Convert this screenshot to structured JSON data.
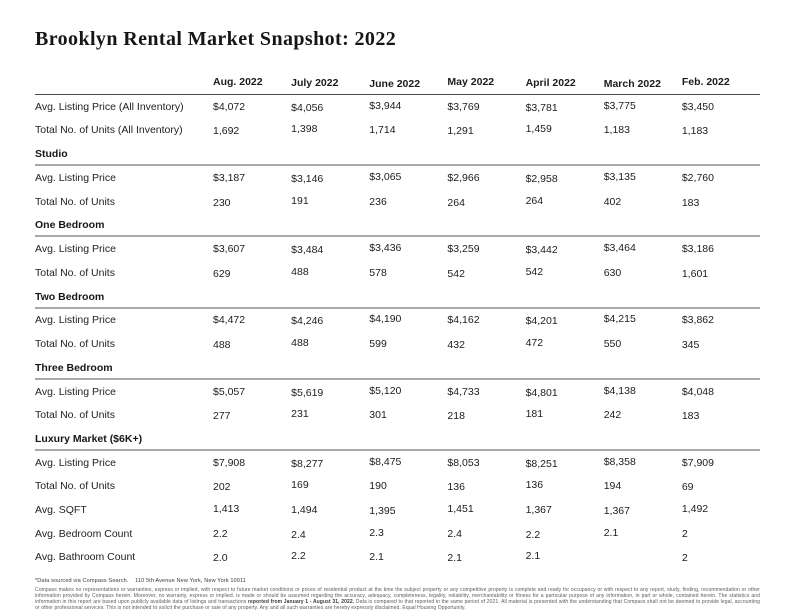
{
  "page": {
    "title": "Brooklyn Rental Market Snapshot: 2022"
  },
  "table": {
    "columns": [
      "Aug. 2022",
      "July 2022",
      "June 2022",
      "May 2022",
      "April 2022",
      "March 2022",
      "Feb. 2022"
    ],
    "sections": [
      {
        "header": null,
        "rows": [
          {
            "label": "Avg. Listing Price (All Inventory)",
            "values": [
              "$4,072",
              "$4,056",
              "$3,944",
              "$3,769",
              "$3,781",
              "$3,775",
              "$3,450"
            ]
          },
          {
            "label": "Total No. of Units (All Inventory)",
            "values": [
              "1,692",
              "1,398",
              "1,714",
              "1,291",
              "1,459",
              "1,183",
              "1,183"
            ]
          }
        ]
      },
      {
        "header": "Studio",
        "rows": [
          {
            "label": "Avg. Listing Price",
            "values": [
              "$3,187",
              "$3,146",
              "$3,065",
              "$2,966",
              "$2,958",
              "$3,135",
              "$2,760"
            ]
          },
          {
            "label": "Total No. of Units",
            "values": [
              "230",
              "191",
              "236",
              "264",
              "264",
              "402",
              "183"
            ]
          }
        ]
      },
      {
        "header": "One Bedroom",
        "rows": [
          {
            "label": "Avg. Listing Price",
            "values": [
              "$3,607",
              "$3,484",
              "$3,436",
              "$3,259",
              "$3,442",
              "$3,464",
              "$3,186"
            ]
          },
          {
            "label": "Total No. of Units",
            "values": [
              "629",
              "488",
              "578",
              "542",
              "542",
              "630",
              "1,601"
            ]
          }
        ]
      },
      {
        "header": "Two Bedroom",
        "rows": [
          {
            "label": "Avg. Listing Price",
            "values": [
              "$4,472",
              "$4,246",
              "$4,190",
              "$4,162",
              "$4,201",
              "$4,215",
              "$3,862"
            ]
          },
          {
            "label": "Total No. of Units",
            "values": [
              "488",
              "488",
              "599",
              "432",
              "472",
              "550",
              "345"
            ]
          }
        ]
      },
      {
        "header": "Three Bedroom",
        "rows": [
          {
            "label": "Avg. Listing Price",
            "values": [
              "$5,057",
              "$5,619",
              "$5,120",
              "$4,733",
              "$4,801",
              "$4,138",
              "$4,048"
            ]
          },
          {
            "label": "Total No. of Units",
            "values": [
              "277",
              "231",
              "301",
              "218",
              "181",
              "242",
              "183"
            ]
          }
        ]
      },
      {
        "header": "Luxury Market ($6K+)",
        "rows": [
          {
            "label": "Avg. Listing Price",
            "values": [
              "$7,908",
              "$8,277",
              "$8,475",
              "$8,053",
              "$8,251",
              "$8,358",
              "$7,909"
            ]
          },
          {
            "label": "Total No. of Units",
            "values": [
              "202",
              "169",
              "190",
              "136",
              "136",
              "194",
              "69"
            ]
          },
          {
            "label": "Avg. SQFT",
            "values": [
              "1,413",
              "1,494",
              "1,395",
              "1,451",
              "1,367",
              "1,367",
              "1,492"
            ]
          },
          {
            "label": "Avg. Bedroom Count",
            "values": [
              "2.2",
              "2.4",
              "2.3",
              "2.4",
              "2.2",
              "2.1",
              "2"
            ]
          },
          {
            "label": "Avg. Bathroom Count",
            "values": [
              "2.0",
              "2.2",
              "2.1",
              "2.1",
              "2.1",
              "",
              "2"
            ]
          }
        ]
      }
    ]
  },
  "footer": {
    "source_note": "*Data sourced via Compass Search.    110 5th Avenue New York, New York 10011",
    "disclaimer_before": "Compass makes no representations or warranties, express or implied, with respect to future market conditions or prices of residential product at the time the subject property or any competitive property is complete and ready for occupancy or with respect to any report, study, finding, recommendation or other information provided by Compass herein. Moreover, no warranty, express or implied, is made or should be assumed regarding the accuracy, adequacy, completeness, legality, reliability, merchantability or fitness for a particular purpose of any information, in part or whole, contained herein. The statistics and information in this report are based upon publicly available data of listings and transactions ",
    "disclaimer_bold": "reported from January 1 - August 31, 2022.",
    "disclaimer_after": " Data is compared to that reported in the same period of 2021.  All material is presented with the understanding that Compass shall not be deemed to provide legal, accounting or other professional services. This is not intended to solicit the purchase or sale of any property. Any and all such warranties are hereby expressly disclaimed. Equal Housing Opportunity."
  }
}
